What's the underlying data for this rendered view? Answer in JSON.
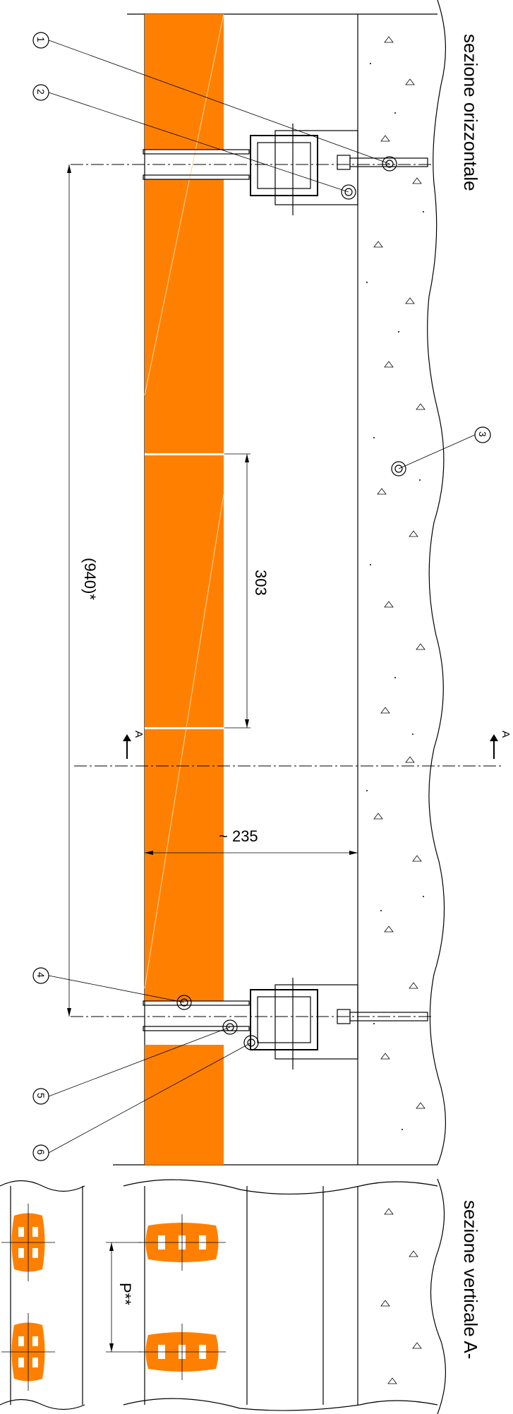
{
  "colors": {
    "tile": "#ff8000",
    "ink": "#000000",
    "background": "#ffffff"
  },
  "labels": {
    "section_horizontal": "sezione orizzontale",
    "section_vertical": "sezione verticale A-",
    "section_mark_left": "A",
    "section_mark_right": "A"
  },
  "dimensions": {
    "overall": "(940)*",
    "tile": "303",
    "depth": "~ 235",
    "pitch": "P**"
  },
  "callouts": [
    {
      "number": "1"
    },
    {
      "number": "2"
    },
    {
      "number": "3"
    },
    {
      "number": "4"
    },
    {
      "number": "5"
    },
    {
      "number": "6"
    }
  ]
}
